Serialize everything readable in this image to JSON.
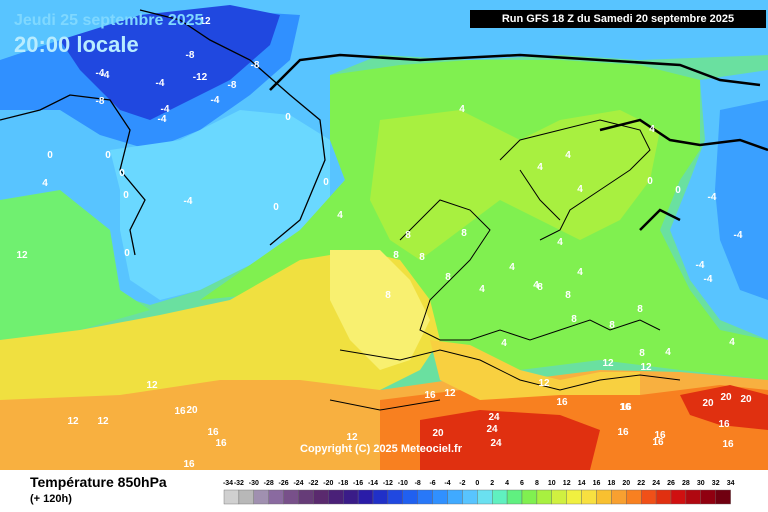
{
  "header": {
    "date": "Jeudi 25 septembre 2025",
    "time": "20:00 locale",
    "run": "Run GFS 18 Z du Samedi 20 septembre 2025"
  },
  "footer": {
    "parameter": "Température 850hPa",
    "lead_time": "(+ 120h)",
    "copyright": "Copyright (C) 2025 Meteociel.fr"
  },
  "legend": {
    "ticks": [
      "-34",
      "-32",
      "-30",
      "-28",
      "-26",
      "-24",
      "-22",
      "-20",
      "-18",
      "-16",
      "-14",
      "-12",
      "-10",
      "-8",
      "-6",
      "-4",
      "-2",
      "0",
      "2",
      "4",
      "6",
      "8",
      "10",
      "12",
      "14",
      "16",
      "18",
      "20",
      "22",
      "24",
      "26",
      "28",
      "30",
      "32",
      "34"
    ],
    "colors": [
      "#d0d0d0",
      "#b8b8b8",
      "#a090b0",
      "#8a6aa0",
      "#78508a",
      "#663c78",
      "#5a2a6e",
      "#4a2078",
      "#3a1c88",
      "#2a1ca8",
      "#2030c8",
      "#2048e0",
      "#2060f0",
      "#2878f8",
      "#3090ff",
      "#40aaff",
      "#58c4ff",
      "#6ae0f0",
      "#60f0c0",
      "#60f080",
      "#80f050",
      "#a8f040",
      "#d0f040",
      "#f0f040",
      "#f8e040",
      "#f8c030",
      "#f8a030",
      "#f88020",
      "#f05018",
      "#e03010",
      "#d01010",
      "#b00810",
      "#900010",
      "#700010"
    ]
  },
  "map": {
    "colors": {
      "deep_cold": "#2040e0",
      "cold": "#3090ff",
      "cool": "#50c8ff",
      "mild": "#60f0b0",
      "green": "#80f050",
      "yellow": "#f8e040",
      "orange": "#f8a030",
      "red": "#e03010"
    },
    "labels": [
      {
        "text": "12"
      },
      {
        "text": "-8"
      },
      {
        "text": "-4"
      },
      {
        "text": "-8"
      },
      {
        "text": "-12"
      },
      {
        "text": "-4"
      },
      {
        "text": "-8"
      },
      {
        "text": "-4"
      },
      {
        "text": "-8"
      },
      {
        "text": "-4"
      },
      {
        "text": "-4"
      },
      {
        "text": "-4"
      },
      {
        "text": "0"
      },
      {
        "text": "0"
      },
      {
        "text": "0"
      },
      {
        "text": "4"
      },
      {
        "text": "0"
      },
      {
        "text": "0"
      },
      {
        "text": "-4"
      },
      {
        "text": "0"
      },
      {
        "text": "0"
      },
      {
        "text": "4"
      },
      {
        "text": "0"
      },
      {
        "text": "4"
      },
      {
        "text": "4"
      },
      {
        "text": "4"
      },
      {
        "text": "4"
      },
      {
        "text": "4"
      },
      {
        "text": "0"
      },
      {
        "text": "0"
      },
      {
        "text": "-4"
      },
      {
        "text": "-4"
      },
      {
        "text": "-4"
      },
      {
        "text": "-4"
      },
      {
        "text": "8"
      },
      {
        "text": "8"
      },
      {
        "text": "8"
      },
      {
        "text": "8"
      },
      {
        "text": "8"
      },
      {
        "text": "8"
      },
      {
        "text": "4"
      },
      {
        "text": "4"
      },
      {
        "text": "4"
      },
      {
        "text": "4"
      },
      {
        "text": "8"
      },
      {
        "text": "8"
      },
      {
        "text": "4"
      },
      {
        "text": "4"
      },
      {
        "text": "8"
      },
      {
        "text": "8"
      },
      {
        "text": "8"
      },
      {
        "text": "4"
      },
      {
        "text": "8"
      },
      {
        "text": "4"
      },
      {
        "text": "12"
      },
      {
        "text": "12"
      },
      {
        "text": "12"
      },
      {
        "text": "12"
      },
      {
        "text": "12"
      },
      {
        "text": "16"
      },
      {
        "text": "12"
      },
      {
        "text": "16"
      },
      {
        "text": "16"
      },
      {
        "text": "16"
      },
      {
        "text": "16"
      },
      {
        "text": "16"
      },
      {
        "text": "20"
      },
      {
        "text": "16"
      },
      {
        "text": "12"
      },
      {
        "text": "12"
      },
      {
        "text": "16"
      },
      {
        "text": "16"
      },
      {
        "text": "16"
      },
      {
        "text": "16"
      },
      {
        "text": "20"
      },
      {
        "text": "24"
      },
      {
        "text": "24"
      },
      {
        "text": "24"
      },
      {
        "text": "20"
      },
      {
        "text": "20"
      },
      {
        "text": "20"
      },
      {
        "text": "16"
      },
      {
        "text": "16"
      },
      {
        "text": "12"
      }
    ]
  }
}
